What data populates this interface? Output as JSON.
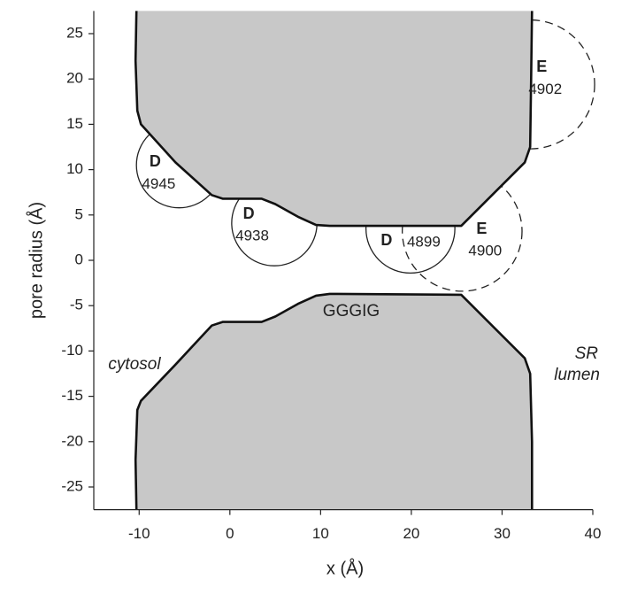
{
  "chart_data": {
    "type": "pore-profile",
    "x_label": "x (Å)",
    "y_label": "pore radius (Å)",
    "xlim": [
      -15,
      40
    ],
    "ylim": [
      -27.5,
      27.5
    ],
    "xticks": [
      -10,
      0,
      10,
      20,
      30,
      40
    ],
    "yticks": [
      -25,
      -20,
      -15,
      -10,
      -5,
      0,
      5,
      10,
      15,
      20,
      25
    ],
    "color": "#c8c8c8",
    "series": [
      {
        "name": "upper wall",
        "x": [
          -10.3,
          -10.4,
          -10.2,
          -9.8,
          -6,
          -2,
          -0.8,
          3.5,
          5,
          7.5,
          9.5,
          11,
          25.5,
          32.5,
          33.1,
          33.2,
          33.3
        ],
        "values": [
          27.5,
          22,
          16.5,
          15,
          10.8,
          7.2,
          6.8,
          6.8,
          6.2,
          4.8,
          3.9,
          3.8,
          3.8,
          10.8,
          12.5,
          20,
          27.5
        ]
      },
      {
        "name": "lower wall",
        "x": [
          -10.3,
          -10.4,
          -10.2,
          -9.8,
          -6,
          -2,
          -0.8,
          3.5,
          5,
          7.5,
          9.5,
          11,
          25.5,
          32.5,
          33.1,
          33.3,
          33.3
        ],
        "values": [
          -27.5,
          -22,
          -16.5,
          -15.5,
          -11.5,
          -7.2,
          -6.8,
          -6.8,
          -6.2,
          -4.8,
          -3.9,
          -3.7,
          -3.8,
          -10.8,
          -12.5,
          -20,
          -27.5
        ]
      }
    ],
    "sites": [
      {
        "residue": "D",
        "number": "4945",
        "x": -5.6,
        "y": 10.5,
        "r": 4.7,
        "dashed": false
      },
      {
        "residue": "D",
        "number": "4938",
        "x": 4.9,
        "y": 4.1,
        "r": 4.7,
        "dashed": false
      },
      {
        "residue": "D",
        "number": "4899",
        "x": 19.9,
        "y": 3.5,
        "r": 4.9,
        "dashed": false
      },
      {
        "residue": "E",
        "number": "4900",
        "x": 25.6,
        "y": 3.2,
        "r": 6.6,
        "dashed": true
      },
      {
        "residue": "E",
        "number": "4902",
        "x": 33.1,
        "y": 19.4,
        "r": 7.1,
        "dashed": true
      }
    ],
    "annotations": {
      "filter": "GGGIG",
      "cytosol": "cytosol",
      "lumen": [
        "SR",
        "lumen"
      ]
    }
  }
}
